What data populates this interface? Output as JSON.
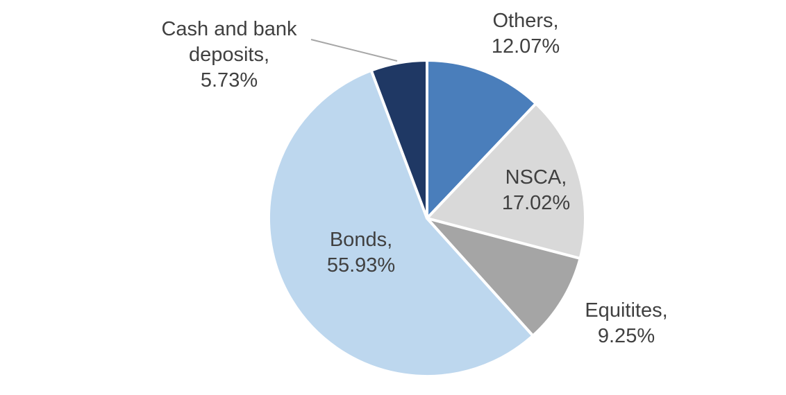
{
  "chart_data": {
    "type": "pie",
    "title": "",
    "legend": "none",
    "start_angle_deg": 0,
    "direction": "clockwise",
    "unit": "%",
    "categories": [
      "Others",
      "NSCA",
      "Equitites",
      "Bonds",
      "Cash and bank deposits"
    ],
    "values": [
      12.07,
      17.02,
      9.25,
      55.93,
      5.73
    ],
    "colors": [
      "#4A7EBB",
      "#D9D9D9",
      "#A5A5A5",
      "#BDD7EE",
      "#1F3864"
    ],
    "slice_border_color": "#FFFFFF",
    "leader_line_color": "#A6A6A6",
    "label_text_color": "#404040",
    "data_labels": {
      "others": {
        "line1": "Others,",
        "line2": "12.07%"
      },
      "nsca": {
        "line1": "NSCA,",
        "line2": "17.02%"
      },
      "equitites": {
        "line1": "Equitites,",
        "line2": "9.25%"
      },
      "bonds": {
        "line1": "Bonds,",
        "line2": "55.93%"
      },
      "cash": {
        "line1": "Cash and bank",
        "line2": "deposits,",
        "line3": "5.73%"
      }
    }
  }
}
